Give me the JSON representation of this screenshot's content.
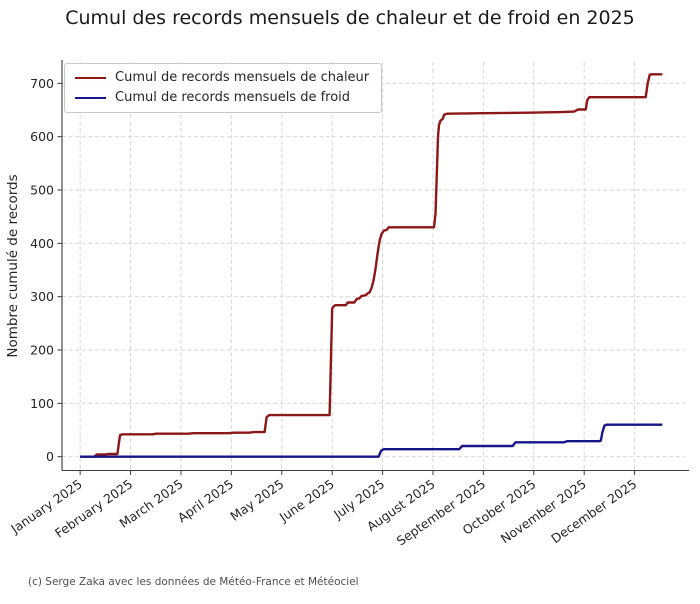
{
  "title": "Cumul des records mensuels de chaleur et de froid en 2025",
  "footer": "(c) Serge Zaka avec les données de Météo-France et Météociel",
  "chart_data": {
    "type": "line",
    "title": "Cumul des records mensuels de chaleur et de froid en 2025",
    "xlabel": "",
    "ylabel": "Nombre cumulé de records",
    "grid": true,
    "grid_style": "dashed",
    "legend_position": "upper left",
    "x_tick_labels": [
      "January 2025",
      "February 2025",
      "March 2025",
      "April 2025",
      "May 2025",
      "June 2025",
      "July 2025",
      "August 2025",
      "September 2025",
      "October 2025",
      "November 2025",
      "December 2025"
    ],
    "y_ticks": [
      0,
      100,
      200,
      300,
      400,
      500,
      600,
      700
    ],
    "ylim": [
      -25,
      740
    ],
    "xlim_months": [
      -0.36,
      12
    ],
    "series": [
      {
        "name": "Cumul de records mensuels de chaleur",
        "color": "#8c1717",
        "x": [
          0,
          0.28,
          0.33,
          0.5,
          0.55,
          0.74,
          0.79,
          0.84,
          1.45,
          1.5,
          2.15,
          2.25,
          2.95,
          3.05,
          3.35,
          3.45,
          3.66,
          3.7,
          3.75,
          4.95,
          5.0,
          5.03,
          5.06,
          5.27,
          5.31,
          5.44,
          5.49,
          5.54,
          5.58,
          5.63,
          5.67,
          5.7,
          5.74,
          5.78,
          5.82,
          5.86,
          5.9,
          5.94,
          5.98,
          6.03,
          6.08,
          6.12,
          7.02,
          7.05,
          7.08,
          7.1,
          7.12,
          7.15,
          7.19,
          7.22,
          7.28,
          8.0,
          8.9,
          9.55,
          9.8,
          9.84,
          9.88,
          10.03,
          10.06,
          10.1,
          11.22,
          11.26,
          11.3,
          11.33,
          11.55
        ],
        "y": [
          0,
          0,
          4,
          4,
          5,
          5,
          40,
          42,
          42,
          43,
          43,
          44,
          44,
          45,
          45,
          46,
          46,
          74,
          78,
          78,
          278,
          282,
          284,
          284,
          289,
          289,
          296,
          297,
          301,
          302,
          303,
          306,
          308,
          316,
          330,
          352,
          380,
          404,
          418,
          424,
          425,
          430,
          430,
          455,
          540,
          600,
          622,
          630,
          633,
          641,
          643,
          644,
          645,
          646,
          647,
          649,
          651,
          651,
          668,
          674,
          674,
          700,
          716,
          717,
          717
        ]
      },
      {
        "name": "Cumul de records mensuels de froid",
        "color": "#16168b",
        "x": [
          0,
          5.92,
          5.97,
          6.02,
          7.52,
          7.58,
          8.58,
          8.64,
          9.6,
          9.66,
          10.3,
          10.33,
          10.36,
          10.4,
          10.44,
          11.55
        ],
        "y": [
          0,
          0,
          11,
          14,
          14,
          20,
          20,
          27,
          27,
          29,
          29,
          30,
          45,
          58,
          60,
          60
        ]
      }
    ]
  }
}
